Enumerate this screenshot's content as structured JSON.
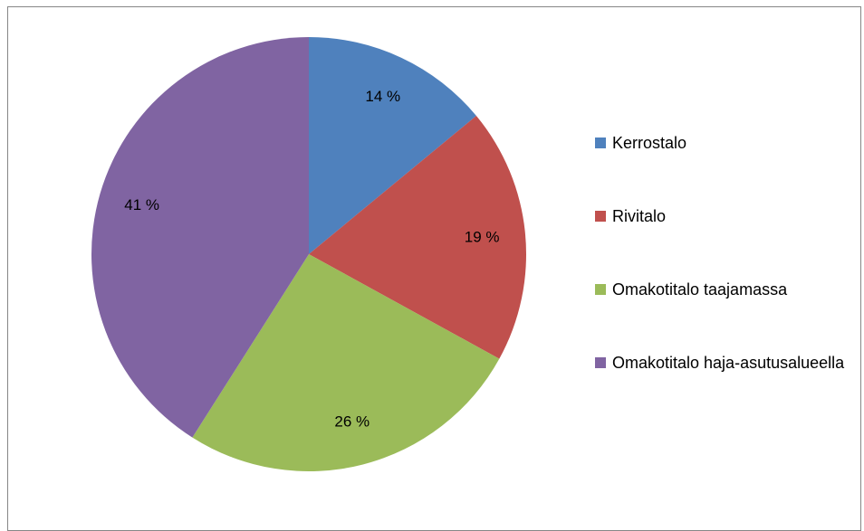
{
  "chart_data": {
    "type": "pie",
    "categories": [
      "Kerrostalo",
      "Rivitalo",
      "Omakotitalo taajamassa",
      "Omakotitalo haja-asutusalueella"
    ],
    "values": [
      14,
      19,
      26,
      41
    ],
    "value_labels": [
      "14 %",
      "19 %",
      "26 %",
      "41 %"
    ],
    "colors": [
      "#4f81bd",
      "#c0504d",
      "#9bbb59",
      "#8064a2"
    ],
    "legend": "right"
  }
}
